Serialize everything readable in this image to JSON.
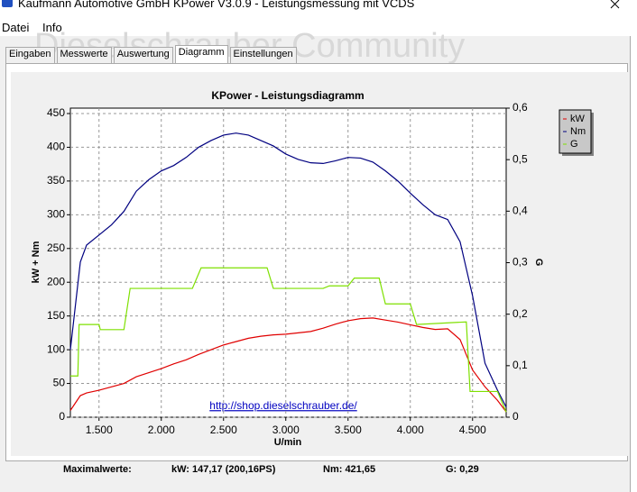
{
  "window": {
    "title": "Kaufmann Automotive GmbH  KPower V3.0.9 - Leistungsmessung mit VCDS"
  },
  "menu": [
    "Datei",
    "Info"
  ],
  "watermark": "Dieselschrauber Community",
  "tabs": [
    "Eingaben",
    "Messwerte",
    "Auswertung",
    "Diagramm",
    "Einstellungen"
  ],
  "chart_data": {
    "type": "line",
    "title": "KPower - Leistungsdiagramm",
    "x_label": "U/min",
    "y_label": "kW + Nm",
    "y2_label": "G",
    "annotation": "http://shop.dieselschrauber.de/",
    "x": [
      1270,
      1350,
      1400,
      1500,
      1600,
      1700,
      1800,
      1900,
      2000,
      2100,
      2200,
      2300,
      2400,
      2500,
      2600,
      2700,
      2800,
      2900,
      3000,
      3100,
      3200,
      3300,
      3400,
      3500,
      3600,
      3700,
      3800,
      3900,
      4000,
      4100,
      4200,
      4300,
      4400,
      4500,
      4600,
      4700,
      4770
    ],
    "series": [
      {
        "name": "kW",
        "color": "#e00000",
        "values": [
          10,
          32,
          36,
          40,
          45,
          50,
          60,
          66,
          72,
          79,
          85,
          93,
          100,
          107,
          112,
          117,
          120,
          122,
          123,
          125,
          127,
          132,
          138,
          143,
          146,
          147,
          144,
          141,
          137,
          133,
          130,
          131,
          115,
          70,
          45,
          25,
          8
        ]
      },
      {
        "name": "Nm",
        "color": "#000080",
        "values": [
          100,
          230,
          255,
          270,
          285,
          305,
          335,
          352,
          365,
          373,
          385,
          400,
          410,
          418,
          421,
          418,
          410,
          402,
          390,
          382,
          377,
          376,
          380,
          385,
          384,
          378,
          365,
          350,
          332,
          315,
          300,
          293,
          260,
          180,
          80,
          40,
          15
        ]
      },
      {
        "name": "G",
        "color": "#7ee000",
        "axis": "y2",
        "x": [
          1270,
          1330,
          1340,
          1500,
          1510,
          1700,
          1750,
          2250,
          2320,
          2850,
          2900,
          3300,
          3350,
          3500,
          3550,
          3750,
          3800,
          4000,
          4050,
          4450,
          4480,
          4700,
          4770
        ],
        "values": [
          0.08,
          0.08,
          0.18,
          0.18,
          0.17,
          0.17,
          0.25,
          0.25,
          0.29,
          0.29,
          0.25,
          0.25,
          0.255,
          0.255,
          0.27,
          0.27,
          0.22,
          0.22,
          0.18,
          0.185,
          0.05,
          0.05,
          0.01
        ]
      }
    ],
    "xlim": [
      1270,
      4770
    ],
    "ylim": [
      0,
      458
    ],
    "y2lim": [
      0,
      0.6
    ],
    "xticks": [
      {
        "value": 1500,
        "label": "1.500"
      },
      {
        "value": 2000,
        "label": "2.000"
      },
      {
        "value": 2500,
        "label": "2.500"
      },
      {
        "value": 3000,
        "label": "3.000"
      },
      {
        "value": 3500,
        "label": "3.500"
      },
      {
        "value": 4000,
        "label": "4.000"
      },
      {
        "value": 4500,
        "label": "4.500"
      }
    ],
    "yticks": [
      0,
      50,
      100,
      150,
      200,
      250,
      300,
      350,
      400,
      450
    ],
    "y2ticks": [
      0,
      {
        "value": 0.1,
        "label": "0,1"
      },
      {
        "value": 0.2,
        "label": "0,2"
      },
      {
        "value": 0.3,
        "label": "0,3"
      },
      {
        "value": 0.4,
        "label": "0,4"
      },
      {
        "value": 0.5,
        "label": "0,5"
      },
      {
        "value": 0.6,
        "label": "0,6"
      }
    ],
    "grid": true,
    "legend": "right"
  },
  "footer": {
    "label": "Maximalwerte:",
    "kw": "kW: 147,17 (200,16PS)",
    "nm": "Nm: 421,65",
    "g": "G: 0,29"
  }
}
